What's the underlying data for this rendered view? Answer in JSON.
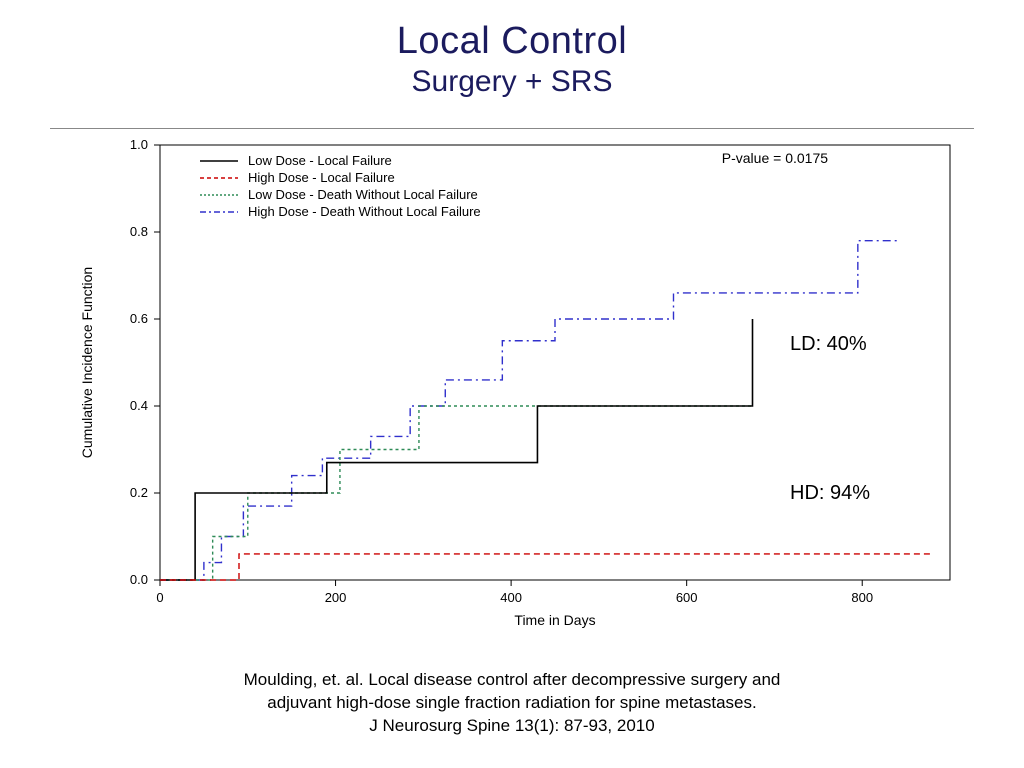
{
  "title": {
    "main": "Local Control",
    "sub": "Surgery + SRS"
  },
  "chart": {
    "type": "line",
    "xlabel": "Time in Days",
    "ylabel": "Cumulative Incidence Function",
    "xlim": [
      0,
      900
    ],
    "ylim": [
      0,
      1.0
    ],
    "xticks": [
      0,
      200,
      400,
      600,
      800
    ],
    "yticks": [
      0.0,
      0.2,
      0.4,
      0.6,
      0.8,
      1.0
    ],
    "pvalue_label": "P-value = 0.0175",
    "label_fontsize": 14,
    "tick_fontsize": 13,
    "background": "#ffffff",
    "axis_color": "#000000",
    "legend": {
      "items": [
        {
          "label": "Low Dose - Local Failure",
          "color": "#000000",
          "dash": "solid"
        },
        {
          "label": "High Dose - Local Failure",
          "color": "#cc0000",
          "dash": "4,3"
        },
        {
          "label": "Low Dose - Death Without Local Failure",
          "color": "#2e8b57",
          "dash": "2,2"
        },
        {
          "label": "High Dose - Death Without Local Failure",
          "color": "#3030cc",
          "dash": "6,3,2,3"
        }
      ]
    },
    "series": {
      "low_dose_local_failure": {
        "color": "#000000",
        "dash": "none",
        "width": 1.6,
        "points": [
          [
            0,
            0.0
          ],
          [
            40,
            0.0
          ],
          [
            40,
            0.2
          ],
          [
            190,
            0.2
          ],
          [
            190,
            0.27
          ],
          [
            430,
            0.27
          ],
          [
            430,
            0.4
          ],
          [
            675,
            0.4
          ],
          [
            675,
            0.6
          ]
        ]
      },
      "high_dose_local_failure": {
        "color": "#cc0000",
        "dash": "6,4",
        "width": 1.4,
        "points": [
          [
            0,
            0.0
          ],
          [
            90,
            0.0
          ],
          [
            90,
            0.06
          ],
          [
            880,
            0.06
          ]
        ]
      },
      "low_dose_death_no_failure": {
        "color": "#2e8b57",
        "dash": "3,3",
        "width": 1.4,
        "points": [
          [
            0,
            0.0
          ],
          [
            60,
            0.0
          ],
          [
            60,
            0.1
          ],
          [
            100,
            0.1
          ],
          [
            100,
            0.2
          ],
          [
            205,
            0.2
          ],
          [
            205,
            0.3
          ],
          [
            295,
            0.3
          ],
          [
            295,
            0.4
          ],
          [
            675,
            0.4
          ]
        ]
      },
      "high_dose_death_no_failure": {
        "color": "#3030cc",
        "dash": "8,4,2,4",
        "width": 1.4,
        "points": [
          [
            0,
            0.0
          ],
          [
            50,
            0.0
          ],
          [
            50,
            0.04
          ],
          [
            70,
            0.04
          ],
          [
            70,
            0.1
          ],
          [
            95,
            0.1
          ],
          [
            95,
            0.17
          ],
          [
            150,
            0.17
          ],
          [
            150,
            0.24
          ],
          [
            185,
            0.24
          ],
          [
            185,
            0.28
          ],
          [
            240,
            0.28
          ],
          [
            240,
            0.33
          ],
          [
            285,
            0.33
          ],
          [
            285,
            0.4
          ],
          [
            325,
            0.4
          ],
          [
            325,
            0.46
          ],
          [
            390,
            0.46
          ],
          [
            390,
            0.55
          ],
          [
            450,
            0.55
          ],
          [
            450,
            0.6
          ],
          [
            585,
            0.6
          ],
          [
            585,
            0.66
          ],
          [
            795,
            0.66
          ],
          [
            795,
            0.78
          ],
          [
            840,
            0.78
          ]
        ]
      }
    },
    "annotations": {
      "LD": "LD: 40%",
      "HD": "HD: 94%"
    }
  },
  "citation": {
    "line1": "Moulding, et. al. Local disease control after decompressive surgery and",
    "line2": "adjuvant high-dose single fraction radiation for spine metastases.",
    "line3": "J Neurosurg Spine 13(1): 87-93, 2010"
  }
}
